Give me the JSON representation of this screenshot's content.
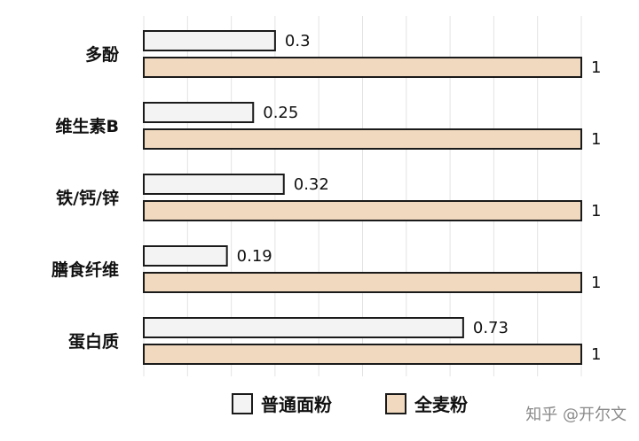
{
  "chart_data": {
    "type": "bar",
    "orientation": "horizontal",
    "categories": [
      "多酚",
      "维生素B",
      "铁/钙/锌",
      "膳食纤维",
      "蛋白质"
    ],
    "series": [
      {
        "name": "普通面粉",
        "values": [
          0.3,
          0.25,
          0.32,
          0.19,
          0.73
        ],
        "labels": [
          "0.3",
          "0.25",
          "0.32",
          "0.19",
          "0.73"
        ]
      },
      {
        "name": "全麦粉",
        "values": [
          1,
          1,
          1,
          1,
          1
        ],
        "labels": [
          "1",
          "1",
          "1",
          "1",
          "1"
        ]
      }
    ],
    "xlim": [
      0,
      1
    ],
    "grid": "vertical",
    "legend": "bottom",
    "colors": {
      "普通面粉": "#f3f3f3",
      "全麦粉": "#f0d9bf",
      "bar_stroke": "#1a1a1a",
      "grid": "#e3e3e3"
    }
  },
  "watermark": "知乎 @开尔文"
}
